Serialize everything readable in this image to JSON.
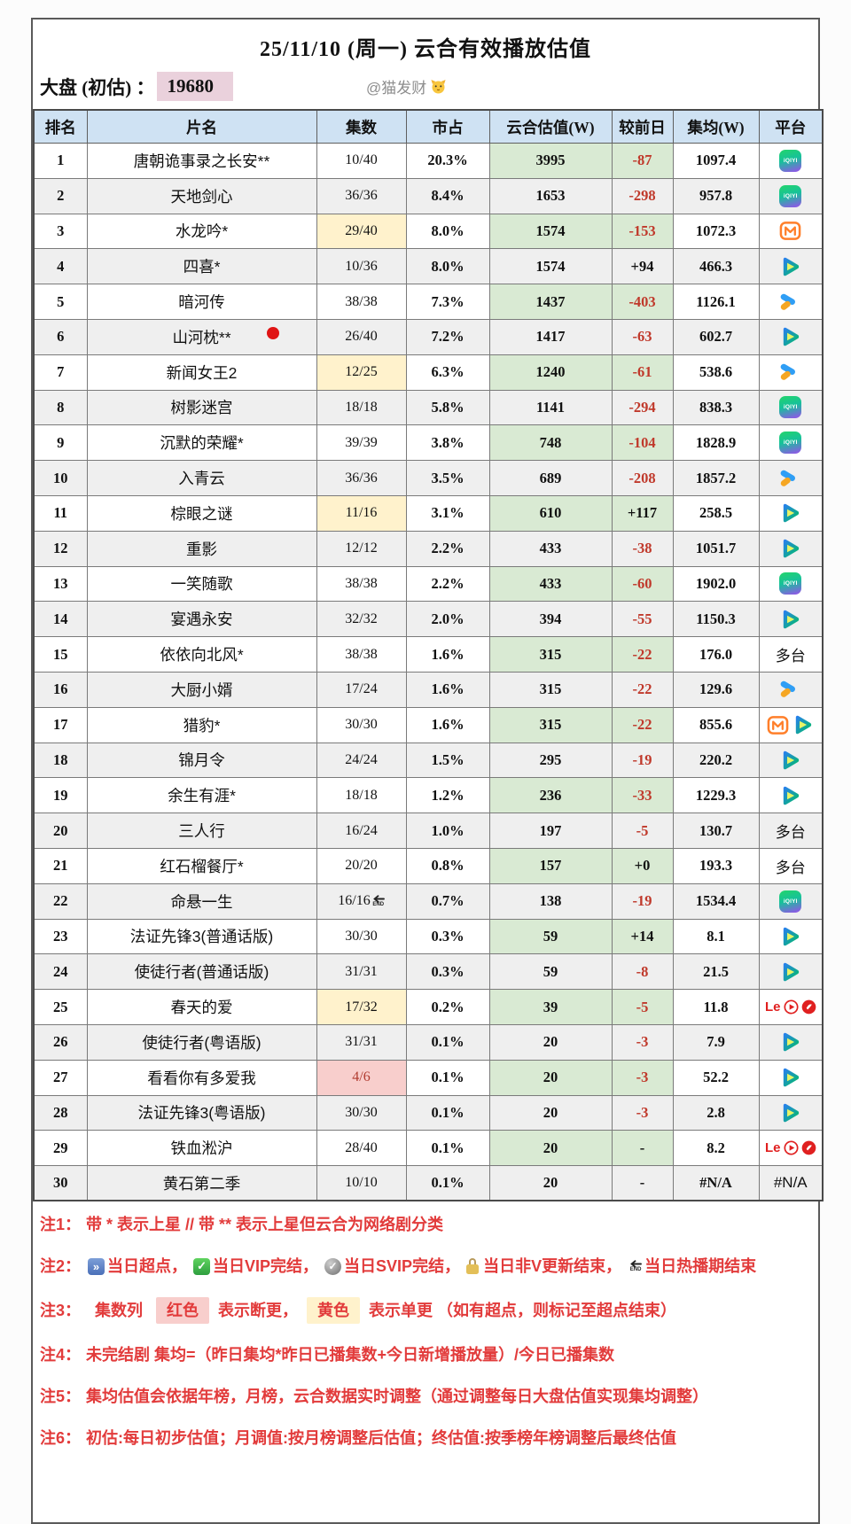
{
  "header": {
    "title": "25/11/10 (周一) 云合有效播放估值",
    "market_label": "大盘 (初估) ：",
    "market_value": "19680",
    "credit": "@猫发财"
  },
  "table": {
    "columns": [
      "排名",
      "片名",
      "集数",
      "市占",
      "云合估值(W)",
      "较前日",
      "集均(W)",
      "平台"
    ],
    "rows": [
      {
        "rank": "1",
        "title": "唐朝诡事录之长安**",
        "ep": "10/40",
        "hl": null,
        "end": false,
        "share": "20.3%",
        "est": "3995",
        "chg": "-87",
        "neg": true,
        "avg": "1097.4",
        "plat": [
          "iqiyi"
        ]
      },
      {
        "rank": "2",
        "title": "天地剑心",
        "ep": "36/36",
        "hl": null,
        "end": false,
        "share": "8.4%",
        "est": "1653",
        "chg": "-298",
        "neg": true,
        "avg": "957.8",
        "plat": [
          "iqiyi"
        ]
      },
      {
        "rank": "3",
        "title": "水龙吟*",
        "ep": "29/40",
        "hl": "y",
        "end": false,
        "share": "8.0%",
        "est": "1574",
        "chg": "-153",
        "neg": true,
        "avg": "1072.3",
        "plat": [
          "mgtv"
        ]
      },
      {
        "rank": "4",
        "title": "四喜*",
        "ep": "10/36",
        "hl": null,
        "end": false,
        "share": "8.0%",
        "est": "1574",
        "chg": "+94",
        "neg": false,
        "avg": "466.3",
        "plat": [
          "tencent"
        ]
      },
      {
        "rank": "5",
        "title": "暗河传",
        "ep": "38/38",
        "hl": null,
        "end": false,
        "share": "7.3%",
        "est": "1437",
        "chg": "-403",
        "neg": true,
        "avg": "1126.1",
        "plat": [
          "youku"
        ]
      },
      {
        "rank": "6",
        "title": "山河枕**",
        "ep": "26/40",
        "hl": "y",
        "end": false,
        "share": "7.2%",
        "est": "1417",
        "chg": "-63",
        "neg": true,
        "avg": "602.7",
        "plat": [
          "tencent"
        ]
      },
      {
        "rank": "7",
        "title": "新闻女王2",
        "ep": "12/25",
        "hl": "y",
        "end": false,
        "share": "6.3%",
        "est": "1240",
        "chg": "-61",
        "neg": true,
        "avg": "538.6",
        "plat": [
          "youku"
        ]
      },
      {
        "rank": "8",
        "title": "树影迷宫",
        "ep": "18/18",
        "hl": null,
        "end": false,
        "share": "5.8%",
        "est": "1141",
        "chg": "-294",
        "neg": true,
        "avg": "838.3",
        "plat": [
          "iqiyi"
        ]
      },
      {
        "rank": "9",
        "title": "沉默的荣耀*",
        "ep": "39/39",
        "hl": null,
        "end": false,
        "share": "3.8%",
        "est": "748",
        "chg": "-104",
        "neg": true,
        "avg": "1828.9",
        "plat": [
          "iqiyi"
        ]
      },
      {
        "rank": "10",
        "title": "入青云",
        "ep": "36/36",
        "hl": null,
        "end": false,
        "share": "3.5%",
        "est": "689",
        "chg": "-208",
        "neg": true,
        "avg": "1857.2",
        "plat": [
          "youku"
        ]
      },
      {
        "rank": "11",
        "title": "棕眼之谜",
        "ep": "11/16",
        "hl": "y",
        "end": false,
        "share": "3.1%",
        "est": "610",
        "chg": "+117",
        "neg": false,
        "avg": "258.5",
        "plat": [
          "tencent"
        ]
      },
      {
        "rank": "12",
        "title": "重影",
        "ep": "12/12",
        "hl": null,
        "end": false,
        "share": "2.2%",
        "est": "433",
        "chg": "-38",
        "neg": true,
        "avg": "1051.7",
        "plat": [
          "tencent"
        ]
      },
      {
        "rank": "13",
        "title": "一笑随歌",
        "ep": "38/38",
        "hl": null,
        "end": false,
        "share": "2.2%",
        "est": "433",
        "chg": "-60",
        "neg": true,
        "avg": "1902.0",
        "plat": [
          "iqiyi"
        ]
      },
      {
        "rank": "14",
        "title": "宴遇永安",
        "ep": "32/32",
        "hl": null,
        "end": false,
        "share": "2.0%",
        "est": "394",
        "chg": "-55",
        "neg": true,
        "avg": "1150.3",
        "plat": [
          "tencent"
        ]
      },
      {
        "rank": "15",
        "title": "依依向北风*",
        "ep": "38/38",
        "hl": null,
        "end": false,
        "share": "1.6%",
        "est": "315",
        "chg": "-22",
        "neg": true,
        "avg": "176.0",
        "plat": [
          "text:多台"
        ]
      },
      {
        "rank": "16",
        "title": "大厨小婿",
        "ep": "17/24",
        "hl": "y",
        "end": false,
        "share": "1.6%",
        "est": "315",
        "chg": "-22",
        "neg": true,
        "avg": "129.6",
        "plat": [
          "youku"
        ]
      },
      {
        "rank": "17",
        "title": "猎豹*",
        "ep": "30/30",
        "hl": null,
        "end": false,
        "share": "1.6%",
        "est": "315",
        "chg": "-22",
        "neg": true,
        "avg": "855.6",
        "plat": [
          "mgtv",
          "tencent"
        ]
      },
      {
        "rank": "18",
        "title": "锦月令",
        "ep": "24/24",
        "hl": null,
        "end": false,
        "share": "1.5%",
        "est": "295",
        "chg": "-19",
        "neg": true,
        "avg": "220.2",
        "plat": [
          "tencent"
        ]
      },
      {
        "rank": "19",
        "title": "余生有涯*",
        "ep": "18/18",
        "hl": null,
        "end": false,
        "share": "1.2%",
        "est": "236",
        "chg": "-33",
        "neg": true,
        "avg": "1229.3",
        "plat": [
          "tencent"
        ]
      },
      {
        "rank": "20",
        "title": "三人行",
        "ep": "16/24",
        "hl": "y",
        "end": false,
        "share": "1.0%",
        "est": "197",
        "chg": "-5",
        "neg": true,
        "avg": "130.7",
        "plat": [
          "text:多台"
        ]
      },
      {
        "rank": "21",
        "title": "红石榴餐厅*",
        "ep": "20/20",
        "hl": null,
        "end": false,
        "share": "0.8%",
        "est": "157",
        "chg": "+0",
        "neg": false,
        "avg": "193.3",
        "plat": [
          "text:多台"
        ]
      },
      {
        "rank": "22",
        "title": "命悬一生",
        "ep": "16/16",
        "hl": null,
        "end": true,
        "share": "0.7%",
        "est": "138",
        "chg": "-19",
        "neg": true,
        "avg": "1534.4",
        "plat": [
          "iqiyi"
        ]
      },
      {
        "rank": "23",
        "title": "法证先锋3(普通话版)",
        "ep": "30/30",
        "hl": null,
        "end": false,
        "share": "0.3%",
        "est": "59",
        "chg": "+14",
        "neg": false,
        "avg": "8.1",
        "plat": [
          "tencent"
        ]
      },
      {
        "rank": "24",
        "title": "使徒行者(普通话版)",
        "ep": "31/31",
        "hl": null,
        "end": false,
        "share": "0.3%",
        "est": "59",
        "chg": "-8",
        "neg": true,
        "avg": "21.5",
        "plat": [
          "tencent"
        ]
      },
      {
        "rank": "25",
        "title": "春天的爱",
        "ep": "17/32",
        "hl": "y",
        "end": false,
        "share": "0.2%",
        "est": "39",
        "chg": "-5",
        "neg": true,
        "avg": "11.8",
        "plat": [
          "le"
        ]
      },
      {
        "rank": "26",
        "title": "使徒行者(粤语版)",
        "ep": "31/31",
        "hl": null,
        "end": false,
        "share": "0.1%",
        "est": "20",
        "chg": "-3",
        "neg": true,
        "avg": "7.9",
        "plat": [
          "tencent"
        ]
      },
      {
        "rank": "27",
        "title": "看看你有多爱我",
        "ep": "4/6",
        "hl": "p",
        "end": false,
        "share": "0.1%",
        "est": "20",
        "chg": "-3",
        "neg": true,
        "avg": "52.2",
        "plat": [
          "tencent"
        ]
      },
      {
        "rank": "28",
        "title": "法证先锋3(粤语版)",
        "ep": "30/30",
        "hl": null,
        "end": false,
        "share": "0.1%",
        "est": "20",
        "chg": "-3",
        "neg": true,
        "avg": "2.8",
        "plat": [
          "tencent"
        ]
      },
      {
        "rank": "29",
        "title": "铁血淞沪",
        "ep": "28/40",
        "hl": null,
        "end": false,
        "share": "0.1%",
        "est": "20",
        "chg": "-",
        "neg": false,
        "avg": "8.2",
        "plat": [
          "le"
        ]
      },
      {
        "rank": "30",
        "title": "黄石第二季",
        "ep": "10/10",
        "hl": null,
        "end": false,
        "share": "0.1%",
        "est": "20",
        "chg": "-",
        "neg": false,
        "avg": "#N/A",
        "plat": [
          "text:#N/A"
        ]
      }
    ]
  },
  "notes": [
    {
      "label": "注1：",
      "segments": [
        {
          "text": "带 * 表示上星 // 带 ** 表示上星但云合为网络剧分类"
        }
      ]
    },
    {
      "label": "注2：",
      "segments": [
        {
          "icon": "fast-forward"
        },
        {
          "text": "当日超点， "
        },
        {
          "icon": "vip-check"
        },
        {
          "text": "当日VIP完结， "
        },
        {
          "icon": "svip-check"
        },
        {
          "text": "当日SVIP完结， "
        },
        {
          "icon": "lock"
        },
        {
          "text": "当日非V更新结束， "
        },
        {
          "icon": "end-arrow"
        },
        {
          "text": "当日热播期结束"
        }
      ]
    },
    {
      "label": "注3：",
      "segments": [
        {
          "text": "  集数列   "
        },
        {
          "text": "红色",
          "bg": "#f8cecc"
        },
        {
          "text": "  表示断更，  "
        },
        {
          "text": "黄色",
          "bg": "#fff2cc"
        },
        {
          "text": "  表示单更 （如有超点，则标记至超点结束）"
        }
      ]
    },
    {
      "label": "注4：",
      "segments": [
        {
          "text": "未完结剧 集均=（昨日集均*昨日已播集数+今日新增播放量）/今日已播集数"
        }
      ]
    },
    {
      "label": "注5：",
      "segments": [
        {
          "text": "集均估值会依据年榜，月榜，云合数据实时调整（通过调整每日大盘估值实现集均调整）"
        }
      ]
    },
    {
      "label": "注6：",
      "segments": [
        {
          "text": "初估:每日初步估值；月调值:按月榜调整后估值；终估值:按季榜年榜调整后最终估值"
        }
      ]
    }
  ],
  "colors": {
    "header_bg": "#cfe2f3",
    "row_alt_bg": "#efefef",
    "green_col_bg": "#d9ead3",
    "yellow_hl": "#fff2cc",
    "pink_hl": "#f8cecc",
    "negative_red": "#c0392b",
    "note_red": "#e23b3b",
    "market_value_bg": "#ead1dc"
  }
}
